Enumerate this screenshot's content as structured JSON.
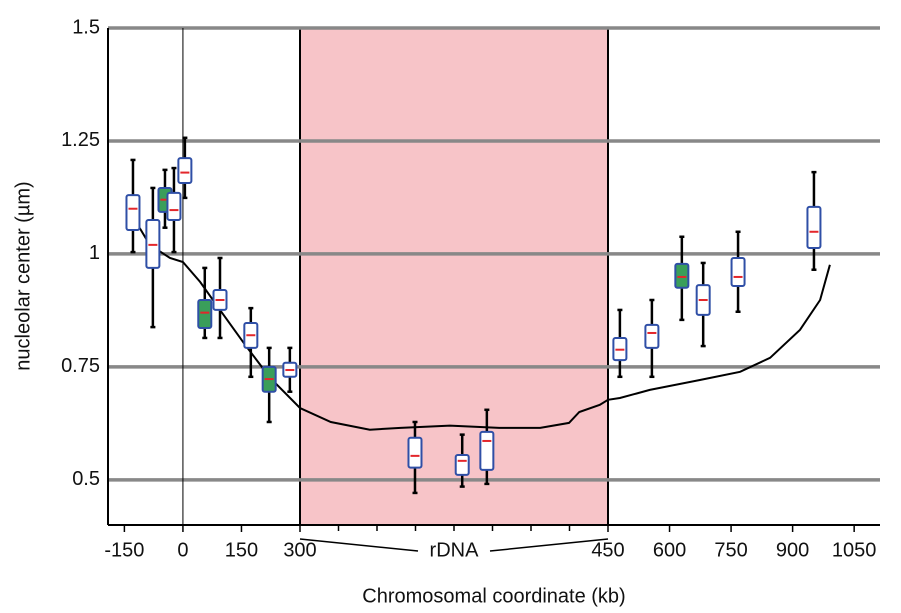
{
  "chart_data": {
    "type": "box",
    "xlabel": "Chromosomal coordinate (kb)",
    "ylabel": "nucleolar center (µm)",
    "xlim": [
      -192,
      1113
    ],
    "ylim": [
      0.4,
      1.5
    ],
    "xticks": [
      -150,
      0,
      150,
      300,
      450,
      600,
      750,
      900,
      1050
    ],
    "yticks": [
      0.5,
      0.75,
      1,
      1.25,
      1.5
    ],
    "grid": true,
    "grid_color": "#888888",
    "vline": 0,
    "axis_break": {
      "from": 300,
      "to": 450,
      "label": "rDNA",
      "color": "#f7c4c8"
    },
    "box_color": "#2f4fa6",
    "median_color": "#e3262b",
    "whisker_color": "#000000",
    "boxes": [
      {
        "x": -128,
        "low": 1.004,
        "q1": 1.053,
        "median": 1.1,
        "q3": 1.13,
        "high": 1.208,
        "fill": "#ffffff"
      },
      {
        "x": -77,
        "low": 0.838,
        "q1": 0.969,
        "median": 1.02,
        "q3": 1.075,
        "high": 1.146,
        "fill": "#ffffff"
      },
      {
        "x": -46,
        "low": 1.058,
        "q1": 1.093,
        "median": 1.12,
        "q3": 1.146,
        "high": 1.186,
        "fill": "#3a9e5a"
      },
      {
        "x": -23,
        "low": 1.004,
        "q1": 1.075,
        "median": 1.097,
        "q3": 1.135,
        "high": 1.19,
        "fill": "#ffffff"
      },
      {
        "x": 5,
        "low": 1.124,
        "q1": 1.157,
        "median": 1.18,
        "q3": 1.212,
        "high": 1.257,
        "fill": "#ffffff"
      },
      {
        "x": 56,
        "low": 0.814,
        "q1": 0.836,
        "median": 0.87,
        "q3": 0.898,
        "high": 0.969,
        "fill": "#3a9e5a"
      },
      {
        "x": 95,
        "low": 0.814,
        "q1": 0.876,
        "median": 0.898,
        "q3": 0.92,
        "high": 0.991,
        "fill": "#ffffff"
      },
      {
        "x": 174,
        "low": 0.728,
        "q1": 0.792,
        "median": 0.82,
        "q3": 0.847,
        "high": 0.88,
        "fill": "#ffffff"
      },
      {
        "x": 221,
        "low": 0.628,
        "q1": 0.695,
        "median": 0.723,
        "q3": 0.75,
        "high": 0.792,
        "fill": "#3a9e5a"
      },
      {
        "x": 274,
        "low": 0.695,
        "q1": 0.728,
        "median": 0.743,
        "q3": 0.759,
        "high": 0.792,
        "fill": "#ffffff"
      },
      {
        "x": 356,
        "low": 0.471,
        "q1": 0.527,
        "median": 0.553,
        "q3": 0.593,
        "high": 0.628,
        "fill": "#ffffff"
      },
      {
        "x": 379,
        "low": 0.485,
        "q1": 0.511,
        "median": 0.542,
        "q3": 0.555,
        "high": 0.6,
        "fill": "#ffffff"
      },
      {
        "x": 391,
        "low": 0.491,
        "q1": 0.522,
        "median": 0.586,
        "q3": 0.606,
        "high": 0.655,
        "fill": "#ffffff"
      },
      {
        "x": 479,
        "low": 0.728,
        "q1": 0.765,
        "median": 0.788,
        "q3": 0.814,
        "high": 0.876,
        "fill": "#ffffff"
      },
      {
        "x": 557,
        "low": 0.728,
        "q1": 0.792,
        "median": 0.825,
        "q3": 0.843,
        "high": 0.898,
        "fill": "#ffffff"
      },
      {
        "x": 630,
        "low": 0.854,
        "q1": 0.925,
        "median": 0.949,
        "q3": 0.978,
        "high": 1.038,
        "fill": "#3a9e5a"
      },
      {
        "x": 682,
        "low": 0.796,
        "q1": 0.865,
        "median": 0.898,
        "q3": 0.931,
        "high": 0.98,
        "fill": "#ffffff"
      },
      {
        "x": 767,
        "low": 0.872,
        "q1": 0.929,
        "median": 0.949,
        "q3": 0.991,
        "high": 1.049,
        "fill": "#ffffff"
      },
      {
        "x": 952,
        "low": 0.965,
        "q1": 1.013,
        "median": 1.049,
        "q3": 1.104,
        "high": 1.181,
        "fill": "#ffffff"
      }
    ],
    "curve": {
      "color": "#000000",
      "x": [
        -123,
        -85,
        -33,
        0,
        44,
        95,
        159,
        223,
        300,
        315,
        334,
        349,
        373,
        397,
        417,
        431,
        436,
        446,
        450,
        479,
        552,
        674,
        772,
        845,
        918,
        967,
        991
      ],
      "y": [
        1.075,
        1.02,
        0.991,
        0.982,
        0.938,
        0.876,
        0.799,
        0.726,
        0.659,
        0.628,
        0.611,
        0.615,
        0.62,
        0.615,
        0.615,
        0.626,
        0.65,
        0.666,
        0.677,
        0.681,
        0.699,
        0.721,
        0.739,
        0.77,
        0.832,
        0.898,
        0.976
      ]
    }
  }
}
